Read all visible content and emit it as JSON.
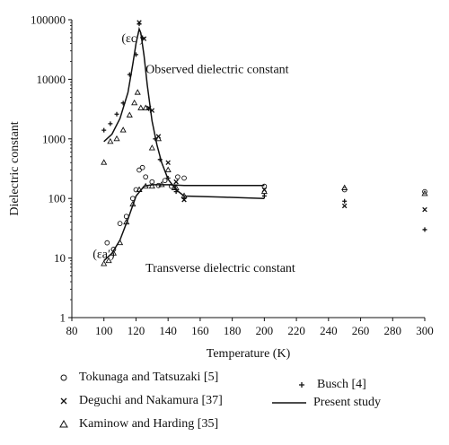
{
  "chart_data": {
    "type": "scatter",
    "xlabel": "Temperature (K)",
    "ylabel": "Dielectric constant",
    "xlim": [
      80,
      300
    ],
    "ylim": [
      1,
      100000
    ],
    "yscale": "log",
    "xticks": [
      "80",
      "100",
      "120",
      "140",
      "160",
      "180",
      "200",
      "220",
      "240",
      "260",
      "280",
      "300"
    ],
    "yticks": [
      "1",
      "10",
      "100",
      "1000",
      "10000",
      "100000"
    ],
    "grid": false,
    "legend_position": "bottom",
    "annotations": [
      {
        "text": "Observed dielectric constant",
        "x": 126,
        "y": 15000
      },
      {
        "text": "Transverse dielectric constant",
        "x": 126,
        "y": 7
      },
      {
        "text": "(εc′)",
        "x": 111,
        "y": 50000
      },
      {
        "text": "(εa′)",
        "x": 93,
        "y": 12
      }
    ],
    "series": [
      {
        "name": "Tokunaga and Tatsuzaki [5]",
        "marker": "circle",
        "points": [
          [
            102,
            18
          ],
          [
            106,
            14
          ],
          [
            110,
            38
          ],
          [
            114,
            50
          ],
          [
            118,
            100
          ],
          [
            120,
            140
          ],
          [
            122,
            300
          ],
          [
            124,
            330
          ],
          [
            126,
            230
          ],
          [
            130,
            190
          ],
          [
            134,
            165
          ],
          [
            138,
            200
          ],
          [
            142,
            160
          ],
          [
            146,
            230
          ],
          [
            150,
            220
          ],
          [
            200,
            160
          ],
          [
            250,
            140
          ],
          [
            300,
            130
          ]
        ]
      },
      {
        "name": "Busch [4]",
        "marker": "plus",
        "points": [
          [
            100,
            1400
          ],
          [
            104,
            1800
          ],
          [
            108,
            2600
          ],
          [
            112,
            4000
          ],
          [
            116,
            12000
          ],
          [
            120,
            26000
          ],
          [
            122,
            85000
          ],
          [
            124,
            50000
          ],
          [
            128,
            3200
          ],
          [
            132,
            1000
          ],
          [
            135,
            450
          ],
          [
            140,
            220
          ],
          [
            145,
            130
          ],
          [
            150,
            100
          ],
          [
            200,
            110
          ],
          [
            250,
            90
          ],
          [
            300,
            30
          ]
        ]
      },
      {
        "name": "Deguchi and Nakamura [37]",
        "marker": "x",
        "points": [
          [
            122,
            90000
          ],
          [
            125,
            48000
          ],
          [
            128,
            3300
          ],
          [
            130,
            3000
          ],
          [
            134,
            1100
          ],
          [
            140,
            400
          ],
          [
            145,
            190
          ],
          [
            150,
            95
          ],
          [
            200,
            140
          ],
          [
            250,
            75
          ],
          [
            300,
            65
          ]
        ]
      },
      {
        "name": "Kaminow and Harding [35]",
        "marker": "triangle",
        "points": [
          [
            100,
            400
          ],
          [
            104,
            900
          ],
          [
            108,
            1000
          ],
          [
            112,
            1400
          ],
          [
            116,
            2500
          ],
          [
            119,
            4000
          ],
          [
            121,
            6000
          ],
          [
            123,
            3300
          ],
          [
            126,
            3300
          ],
          [
            130,
            700
          ],
          [
            134,
            1000
          ],
          [
            140,
            300
          ],
          [
            145,
            150
          ],
          [
            150,
            110
          ],
          [
            200,
            130
          ],
          [
            250,
            150
          ],
          [
            300,
            120
          ],
          [
            100,
            8
          ],
          [
            103,
            9
          ],
          [
            106,
            12
          ],
          [
            110,
            18
          ],
          [
            114,
            40
          ],
          [
            118,
            80
          ],
          [
            122,
            140
          ],
          [
            126,
            160
          ],
          [
            130,
            160
          ],
          [
            136,
            170
          ],
          [
            144,
            150
          ]
        ]
      },
      {
        "name": "Present study",
        "marker": "line",
        "lines": [
          [
            [
              100,
              900
            ],
            [
              105,
              1200
            ],
            [
              110,
              2200
            ],
            [
              115,
              6000
            ],
            [
              118,
              18000
            ],
            [
              120,
              40000
            ],
            [
              122,
              70000
            ],
            [
              123,
              60000
            ],
            [
              125,
              25000
            ],
            [
              127,
              8000
            ],
            [
              130,
              2000
            ],
            [
              133,
              800
            ],
            [
              136,
              400
            ],
            [
              140,
              210
            ],
            [
              145,
              140
            ],
            [
              150,
              110
            ],
            [
              175,
              105
            ],
            [
              200,
              100
            ]
          ],
          [
            [
              100,
              9
            ],
            [
              105,
              12
            ],
            [
              110,
              20
            ],
            [
              115,
              45
            ],
            [
              120,
              110
            ],
            [
              125,
              160
            ],
            [
              130,
              170
            ],
            [
              140,
              170
            ],
            [
              150,
              165
            ],
            [
              175,
              165
            ],
            [
              200,
              165
            ]
          ]
        ]
      }
    ]
  }
}
